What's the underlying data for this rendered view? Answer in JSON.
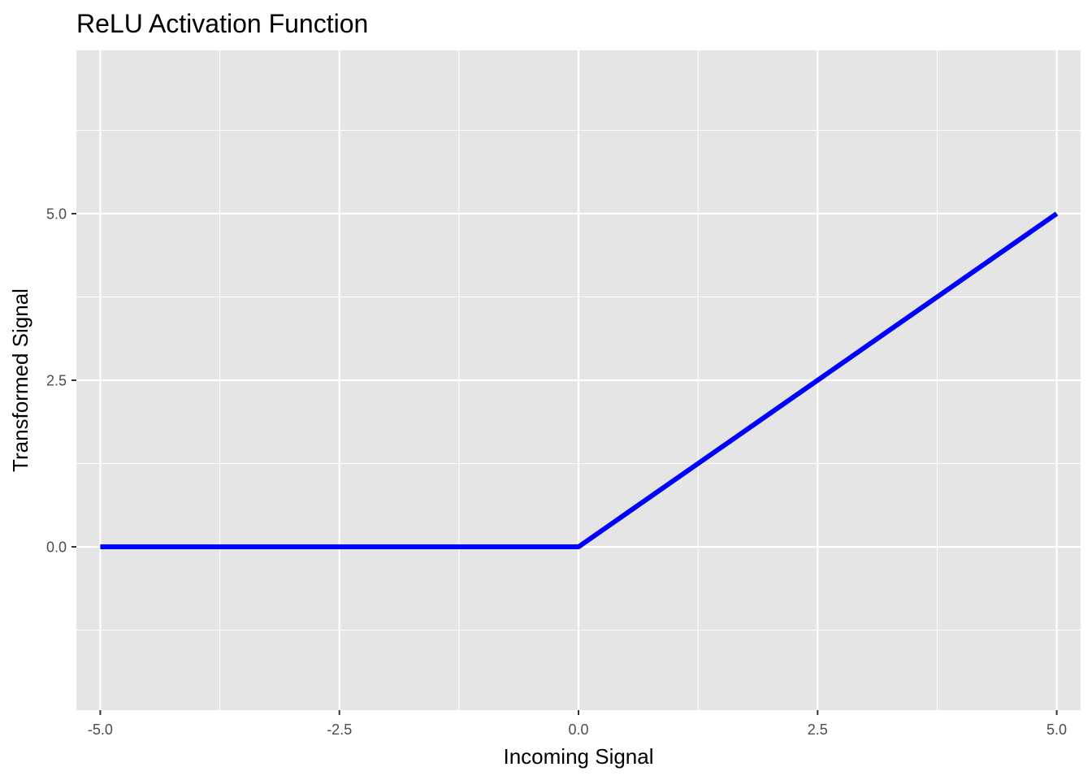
{
  "chart_data": {
    "type": "line",
    "title": "ReLU Activation Function",
    "xlabel": "Incoming Signal",
    "ylabel": "Transformed Signal",
    "xlim": [
      -5.25,
      5.25
    ],
    "ylim": [
      -2.45,
      7.45
    ],
    "x_ticks": [
      -5.0,
      -2.5,
      0.0,
      2.5,
      5.0
    ],
    "x_tick_labels": [
      "-5.0",
      "-2.5",
      "0.0",
      "2.5",
      "5.0"
    ],
    "y_ticks": [
      0.0,
      2.5,
      5.0
    ],
    "y_tick_labels": [
      "0.0",
      "2.5",
      "5.0"
    ],
    "grid": true,
    "panel_background": "#e5e5e5",
    "grid_color": "#ffffff",
    "series": [
      {
        "color": "#0000ff",
        "x": [
          -5.0,
          0.0,
          5.0
        ],
        "y": [
          0.0,
          0.0,
          5.0
        ]
      }
    ]
  }
}
